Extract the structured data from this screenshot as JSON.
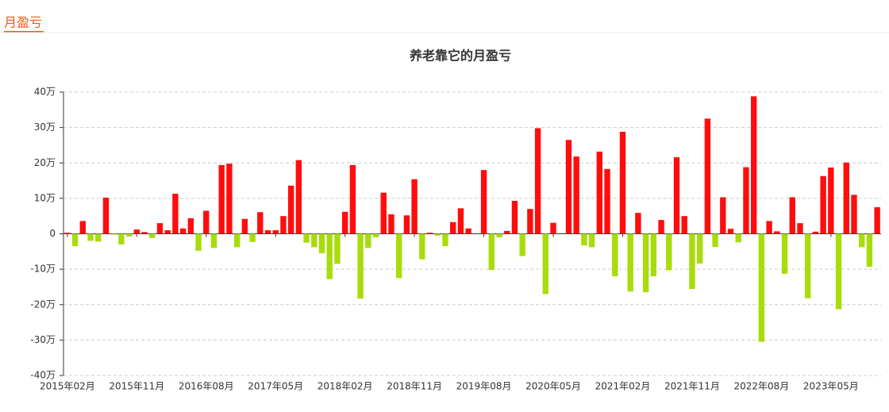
{
  "header": {
    "title": "月盈亏"
  },
  "chart_data": {
    "type": "bar",
    "title": "养老靠它的月盈亏",
    "categories": [
      "2015年02月",
      null,
      null,
      null,
      null,
      null,
      null,
      null,
      null,
      "2015年11月",
      null,
      null,
      null,
      null,
      null,
      null,
      null,
      null,
      "2016年08月",
      null,
      null,
      null,
      null,
      null,
      null,
      null,
      null,
      "2017年05月",
      null,
      null,
      null,
      null,
      null,
      null,
      null,
      null,
      "2018年02月",
      null,
      null,
      null,
      null,
      null,
      null,
      null,
      null,
      "2018年11月",
      null,
      null,
      null,
      null,
      null,
      null,
      null,
      null,
      "2019年08月",
      null,
      null,
      null,
      null,
      null,
      null,
      null,
      null,
      "2020年05月",
      null,
      null,
      null,
      null,
      null,
      null,
      null,
      null,
      "2021年02月",
      null,
      null,
      null,
      null,
      null,
      null,
      null,
      null,
      "2021年11月",
      null,
      null,
      null,
      null,
      null,
      null,
      null,
      null,
      "2022年08月",
      null,
      null,
      null,
      null,
      null,
      null,
      null,
      null,
      "2023年05月",
      null,
      null,
      null,
      null,
      null,
      null
    ],
    "values": [
      0.3,
      -3.5,
      3.6,
      -2,
      -2.2,
      10.2,
      -0.2,
      -3,
      -0.8,
      1.2,
      0.5,
      -1.2,
      3,
      1,
      11.3,
      1.5,
      4.4,
      -4.8,
      6.5,
      -4,
      19.4,
      19.8,
      -3.8,
      4.2,
      -2.3,
      6.1,
      1,
      1,
      5,
      13.6,
      20.8,
      -2.5,
      -3.8,
      -5.5,
      -12.8,
      -8.5,
      6.2,
      19.4,
      -18.3,
      -4,
      -1,
      11.6,
      5.5,
      -12.5,
      5.2,
      15.4,
      -7.2,
      0.3,
      -0.5,
      -3.5,
      3.3,
      7.2,
      1.5,
      0,
      18,
      -10.2,
      -1,
      0.8,
      9.3,
      -6.3,
      7,
      29.8,
      -17,
      3.1,
      0,
      26.5,
      21.8,
      -3.3,
      -3.8,
      23.2,
      18.3,
      -12,
      28.8,
      -16.3,
      5.9,
      -16.5,
      -12,
      3.9,
      -10.3,
      21.6,
      5,
      -15.6,
      -8.4,
      32.5,
      -3.7,
      10.3,
      1.4,
      -2.4,
      18.8,
      38.8,
      -30.5,
      3.6,
      0.7,
      -11.3,
      10.3,
      3,
      -18.2,
      0.6,
      16.3,
      18.7,
      -21.3,
      20.1,
      11,
      -3.8,
      -9.3,
      7.5
    ],
    "positive_color": "#ff0d0d",
    "negative_color": "#a8dc0a",
    "ylim": [
      -40,
      40
    ],
    "yticks": [
      {
        "value": -40,
        "label": "-40万"
      },
      {
        "value": -30,
        "label": "-30万"
      },
      {
        "value": -20,
        "label": "-20万"
      },
      {
        "value": -10,
        "label": "-10万"
      },
      0,
      {
        "value": 10,
        "label": "10万"
      },
      {
        "value": 20,
        "label": "20万"
      },
      {
        "value": 30,
        "label": "30万"
      },
      {
        "value": 40,
        "label": "40万"
      }
    ],
    "grid": true
  }
}
